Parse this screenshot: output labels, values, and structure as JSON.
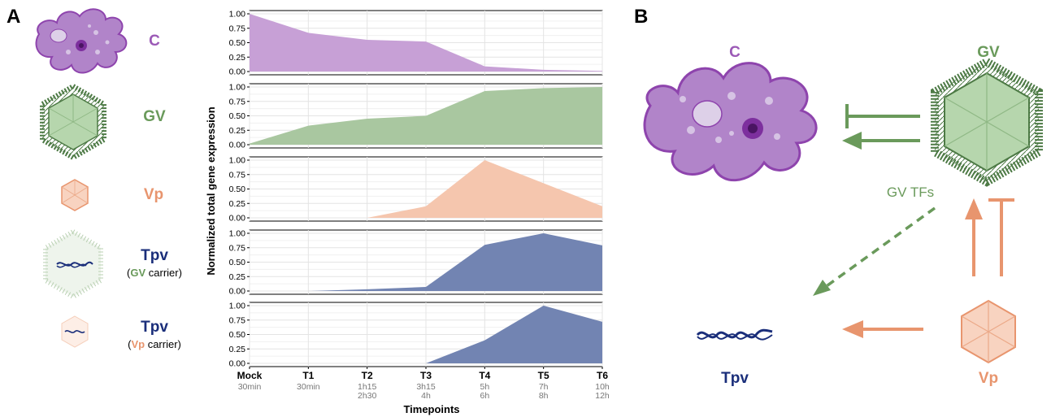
{
  "panels": {
    "a": "A",
    "b": "B"
  },
  "legend": [
    {
      "label": "C",
      "sub_pre": "",
      "sub_tag": "",
      "sub_post": "",
      "color": "#9b59b6"
    },
    {
      "label": "GV",
      "sub_pre": "",
      "sub_tag": "",
      "sub_post": "",
      "color": "#6a9a5b"
    },
    {
      "label": "Vp",
      "sub_pre": "",
      "sub_tag": "",
      "sub_post": "",
      "color": "#e8956e"
    },
    {
      "label": "Tpv",
      "sub_pre": "(",
      "sub_tag": "GV",
      "sub_post": " carrier)",
      "color": "#1a2e7a",
      "tag_color": "#6a9a5b"
    },
    {
      "label": "Tpv",
      "sub_pre": "(",
      "sub_tag": "Vp",
      "sub_post": " carrier)",
      "color": "#1a2e7a",
      "tag_color": "#e8956e"
    }
  ],
  "chart_data": {
    "type": "area",
    "ylabel": "Normalized total gene expression",
    "xlabel": "Timepoints",
    "x": [
      "Mock",
      "T1",
      "T2",
      "T3",
      "T4",
      "T5",
      "T6"
    ],
    "x_sublabels": [
      [
        "30min"
      ],
      [
        "30min"
      ],
      [
        "1h15",
        "2h30"
      ],
      [
        "3h15",
        "4h"
      ],
      [
        "5h",
        "6h"
      ],
      [
        "7h",
        "8h"
      ],
      [
        "10h",
        "12h"
      ]
    ],
    "ylim": [
      0,
      1
    ],
    "yticks": [
      "0.00",
      "0.25",
      "0.50",
      "0.75",
      "1.00"
    ],
    "grid": true,
    "series": [
      {
        "values": [
          1.0,
          0.67,
          0.55,
          0.52,
          0.09,
          0.03,
          0.01
        ],
        "color": "#c7a0d6"
      },
      {
        "values": [
          0.02,
          0.33,
          0.45,
          0.5,
          0.93,
          0.98,
          1.0
        ],
        "color": "#a9c7a0"
      },
      {
        "values": [
          null,
          null,
          0.0,
          0.2,
          1.0,
          0.6,
          0.2
        ],
        "color": "#f5c6ae"
      },
      {
        "values": [
          0.0,
          0.0,
          0.03,
          0.07,
          0.8,
          1.0,
          0.79
        ],
        "color": "#7284b2"
      },
      {
        "values": [
          null,
          null,
          null,
          0.0,
          0.4,
          1.0,
          0.72
        ],
        "color": "#7284b2"
      }
    ]
  },
  "diagram": {
    "c_label": "C",
    "gv_label": "GV",
    "gv_tfs_label": "GV TFs",
    "vp_label": "Vp",
    "tpv_label": "Tpv",
    "green": "#6a9a5b",
    "orange": "#e8956e",
    "purple": "#9b59b6",
    "navy": "#1a2e7a"
  }
}
